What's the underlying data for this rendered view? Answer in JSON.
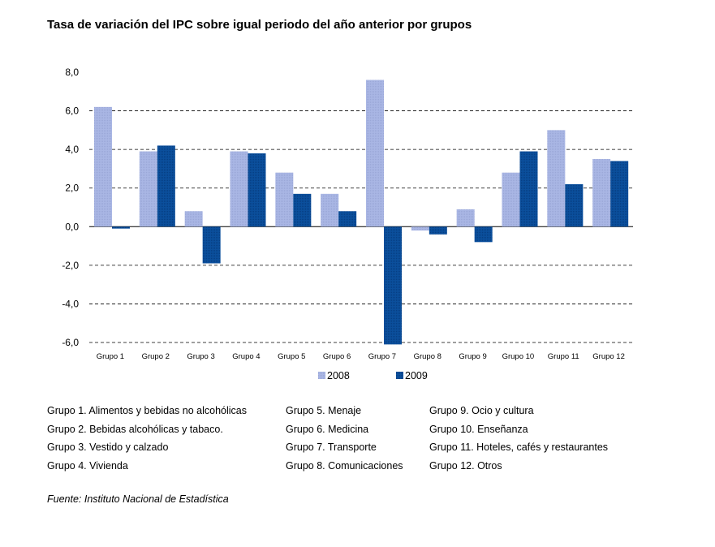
{
  "title": "Tasa de variación del IPC sobre igual periodo del año anterior por grupos",
  "chart_data": {
    "type": "bar",
    "categories": [
      "Grupo 1",
      "Grupo 2",
      "Grupo 3",
      "Grupo 4",
      "Grupo 5",
      "Grupo 6",
      "Grupo 7",
      "Grupo 8",
      "Grupo 9",
      "Grupo 10",
      "Grupo 11",
      "Grupo 12"
    ],
    "series": [
      {
        "name": "2008",
        "color": "#a4b1e0",
        "values": [
          6.2,
          3.9,
          0.8,
          3.9,
          2.8,
          1.7,
          7.6,
          -0.2,
          0.9,
          2.8,
          5.0,
          3.5
        ]
      },
      {
        "name": "2009",
        "color": "#0a4f9a",
        "values": [
          -0.1,
          4.2,
          -1.9,
          3.8,
          1.7,
          0.8,
          -6.1,
          -0.4,
          -0.8,
          3.9,
          2.2,
          3.4
        ]
      }
    ],
    "yticks": [
      "8,0",
      "6,0",
      "4,0",
      "2,0",
      "0,0",
      "-2,0",
      "-4,0",
      "-6,0"
    ],
    "ylim": [
      -6,
      8
    ],
    "grid": "dashed horizontal",
    "legend": "bottom-center",
    "xlabel": "",
    "ylabel": ""
  },
  "groups": [
    [
      "Grupo 1. Alimentos y bebidas no alcohólicas",
      "Grupo 2. Bebidas alcohólicas y  tabaco.",
      "Grupo 3. Vestido y calzado",
      "Grupo 4. Vivienda"
    ],
    [
      "Grupo 5. Menaje",
      "Grupo 6. Medicina",
      "Grupo 7. Transporte",
      "Grupo 8. Comunicaciones"
    ],
    [
      "Grupo 9. Ocio y cultura",
      "Grupo 10. Enseñanza",
      "Grupo 11. Hoteles, cafés y restaurantes",
      "Grupo 12. Otros"
    ]
  ],
  "source": "Fuente: Instituto Nacional de Estadística"
}
